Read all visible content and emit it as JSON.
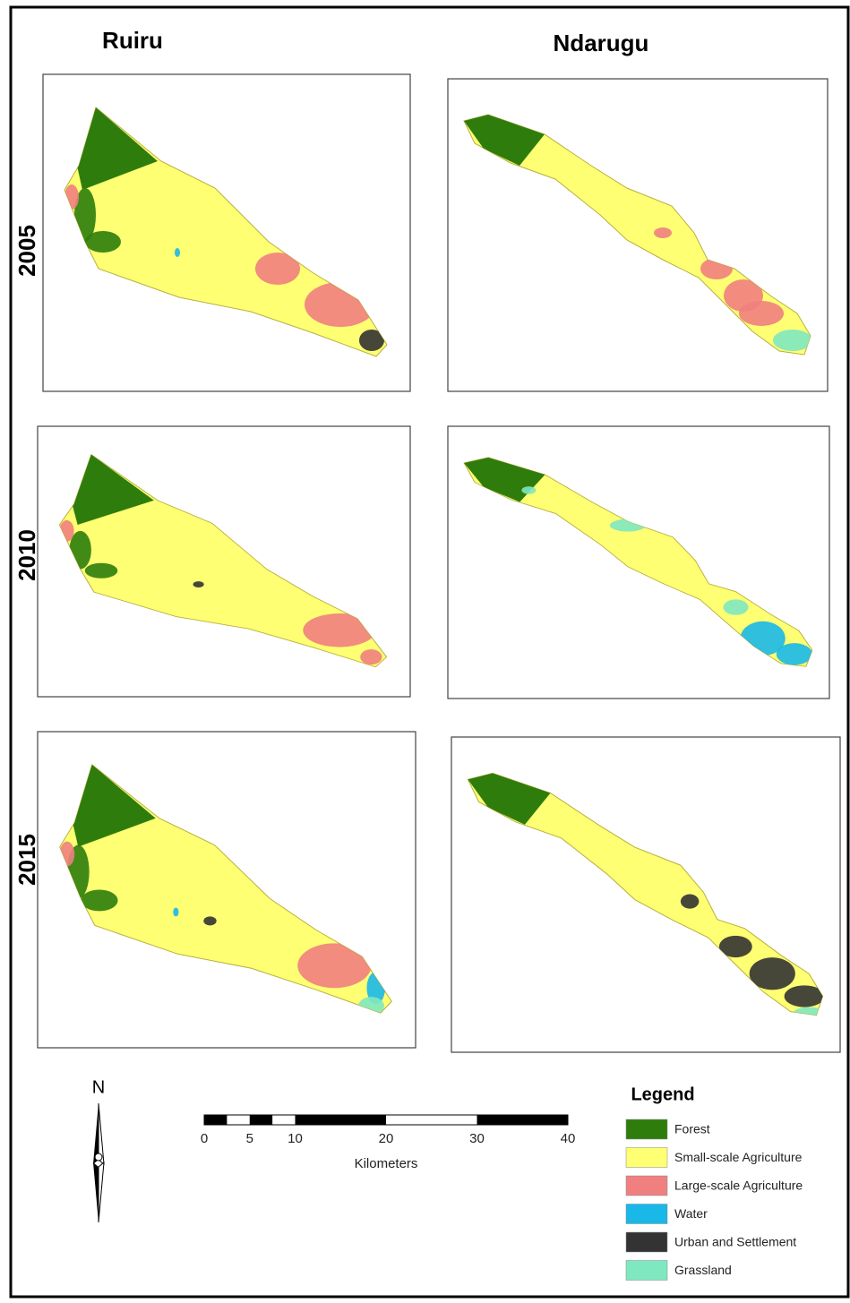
{
  "columns": [
    "Ruiru",
    "Ndarugu"
  ],
  "rows": [
    "2005",
    "2010",
    "2015"
  ],
  "north": "N",
  "scale_bar": {
    "ticks": [
      0,
      5,
      10,
      20,
      30,
      40
    ],
    "unit": "Kilometers"
  },
  "legend": {
    "title": "Legend",
    "items": [
      {
        "label": "Forest",
        "color": "#2e7d0c"
      },
      {
        "label": "Small-scale Agriculture",
        "color": "#ffff73"
      },
      {
        "label": "Large-scale Agriculture",
        "color": "#f08080"
      },
      {
        "label": "Water",
        "color": "#1ab8e8"
      },
      {
        "label": "Urban and Settlement",
        "color": "#333333"
      },
      {
        "label": "Grassland",
        "color": "#7fe8c0"
      }
    ]
  }
}
